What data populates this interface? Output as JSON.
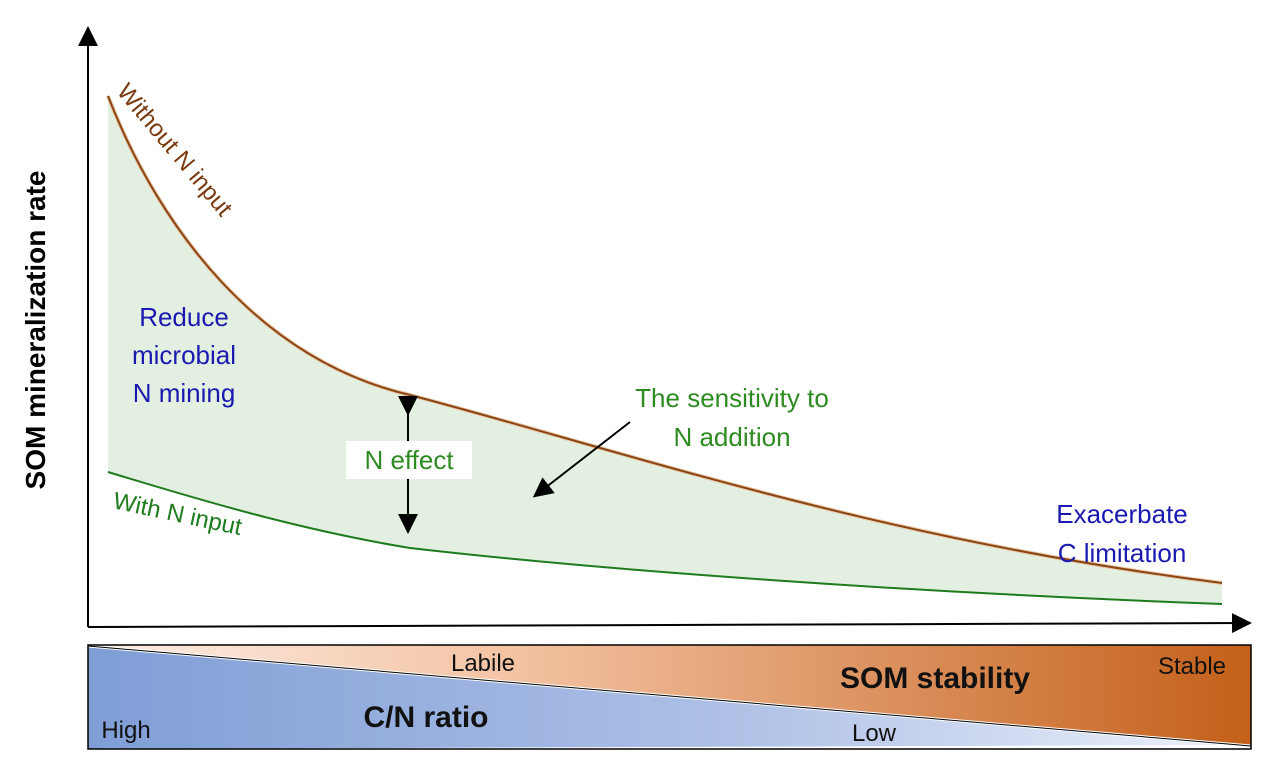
{
  "diagram": {
    "y_axis_label": "SOM mineralization rate",
    "curve_without": "Without N input",
    "curve_with": "With N input",
    "left_annotation": [
      "Reduce",
      "microbial",
      "N mining"
    ],
    "n_effect": "N effect",
    "sensitivity": [
      "The sensitivity to",
      "N addition"
    ],
    "right_annotation": [
      "Exacerbate",
      "C limitation"
    ]
  },
  "bar": {
    "labile": "Labile",
    "som_stability": "SOM stability",
    "stable": "Stable",
    "high": "High",
    "cn_ratio": "C/N ratio",
    "low": "Low"
  },
  "colors": {
    "without_curve": "#8B4513",
    "with_curve": "#1E7B1E",
    "fill": "#E3EFE1",
    "annotation_blue": "#1A1AB0",
    "annotation_green": "#2E8B22",
    "bar_blue": "#7F9ED6",
    "bar_orange": "#C4601A"
  }
}
